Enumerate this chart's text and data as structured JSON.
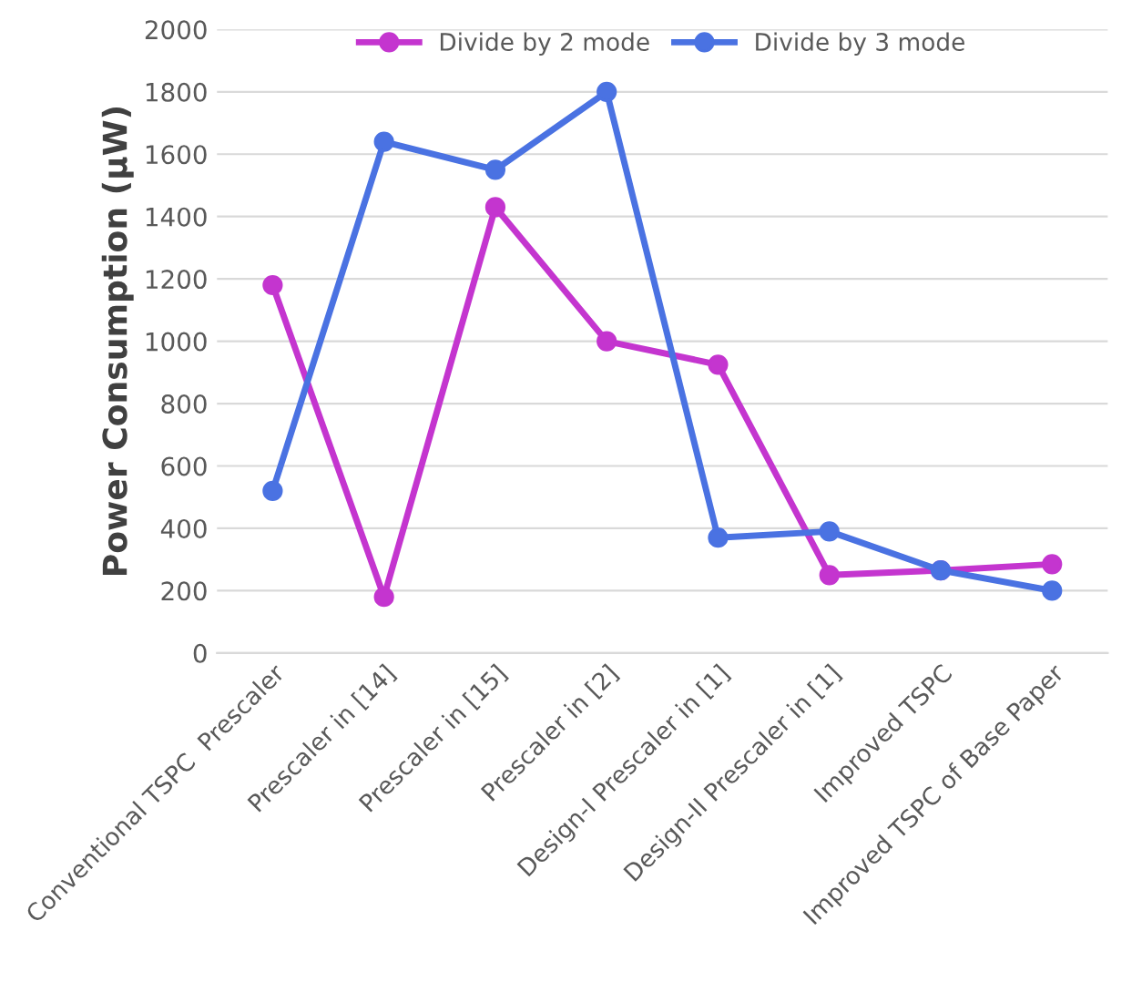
{
  "chart_data": {
    "type": "line",
    "ylabel": "Power Consumption (µW)",
    "categories": [
      "Conventional TSPC  Prescaler",
      "Prescaler in [14]",
      "Prescaler in [15]",
      "Prescaler in [2]",
      "Design-I Prescaler in [1]",
      "Design-II Prescaler in [1]",
      "Improved TSPC",
      "Improved TSPC of Base Paper"
    ],
    "series": [
      {
        "name": "Divide by 2 mode",
        "color": "#c435cf",
        "values": [
          1180,
          180,
          1430,
          1000,
          925,
          250,
          265,
          285
        ]
      },
      {
        "name": "Divide by 3 mode",
        "color": "#4a72e2",
        "values": [
          520,
          1640,
          1550,
          1800,
          370,
          390,
          265,
          200
        ]
      }
    ],
    "ylim": [
      0,
      2000
    ],
    "yticks": [
      0,
      200,
      400,
      600,
      800,
      1000,
      1200,
      1400,
      1600,
      1800,
      2000
    ],
    "grid": "y",
    "legend": "top",
    "marker": "circle",
    "line_style": "solid"
  }
}
